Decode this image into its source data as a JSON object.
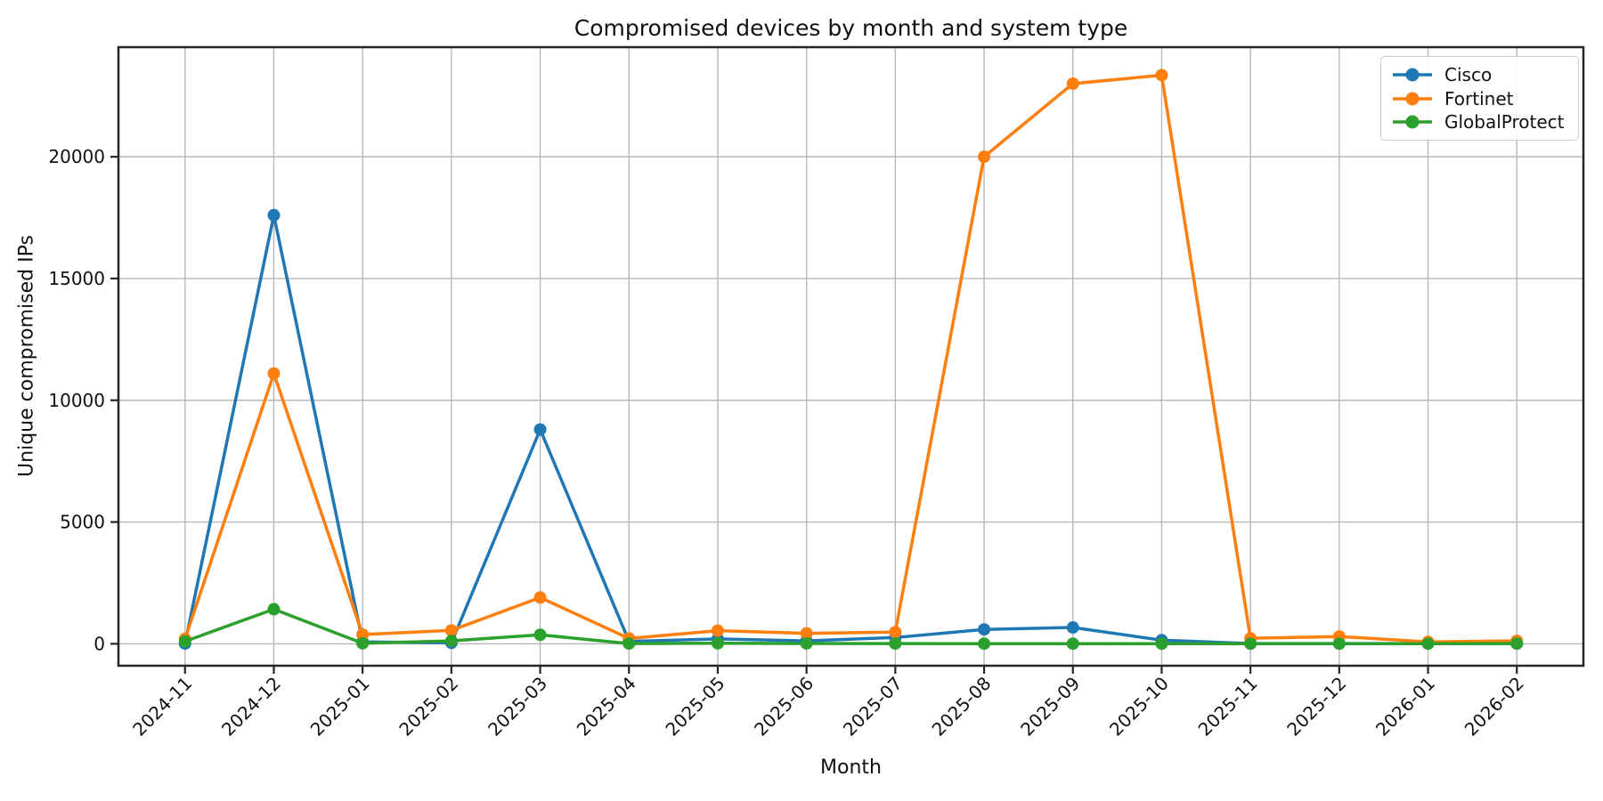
{
  "chart_data": {
    "type": "line",
    "title": "Compromised devices by month and system type",
    "xlabel": "Month",
    "ylabel": "Unique compromised IPs",
    "categories": [
      "2024-11",
      "2024-12",
      "2025-01",
      "2025-02",
      "2025-03",
      "2025-04",
      "2025-05",
      "2025-06",
      "2025-07",
      "2025-08",
      "2025-09",
      "2025-10",
      "2025-11",
      "2025-12",
      "2026-01",
      "2026-02"
    ],
    "series": [
      {
        "name": "Cisco",
        "color": "#1f77b4",
        "values": [
          10,
          17600,
          80,
          40,
          8800,
          100,
          200,
          120,
          260,
          590,
          670,
          150,
          10,
          10,
          10,
          10
        ]
      },
      {
        "name": "Fortinet",
        "color": "#ff7f0e",
        "values": [
          200,
          11100,
          380,
          550,
          1900,
          220,
          540,
          430,
          480,
          20000,
          23000,
          23350,
          230,
          300,
          80,
          120
        ]
      },
      {
        "name": "GlobalProtect",
        "color": "#2ca02c",
        "values": [
          100,
          1420,
          20,
          120,
          370,
          10,
          20,
          15,
          10,
          5,
          5,
          5,
          5,
          5,
          5,
          10
        ]
      }
    ],
    "yticks": [
      0,
      5000,
      10000,
      15000,
      20000
    ],
    "ylim": [
      -900,
      24500
    ],
    "grid": true,
    "legend_position": "upper right",
    "marker": "circle",
    "x_tick_rotation": 45,
    "colors": {
      "grid": "#b8b8b8",
      "spine": "#262626",
      "text": "#111111"
    }
  }
}
